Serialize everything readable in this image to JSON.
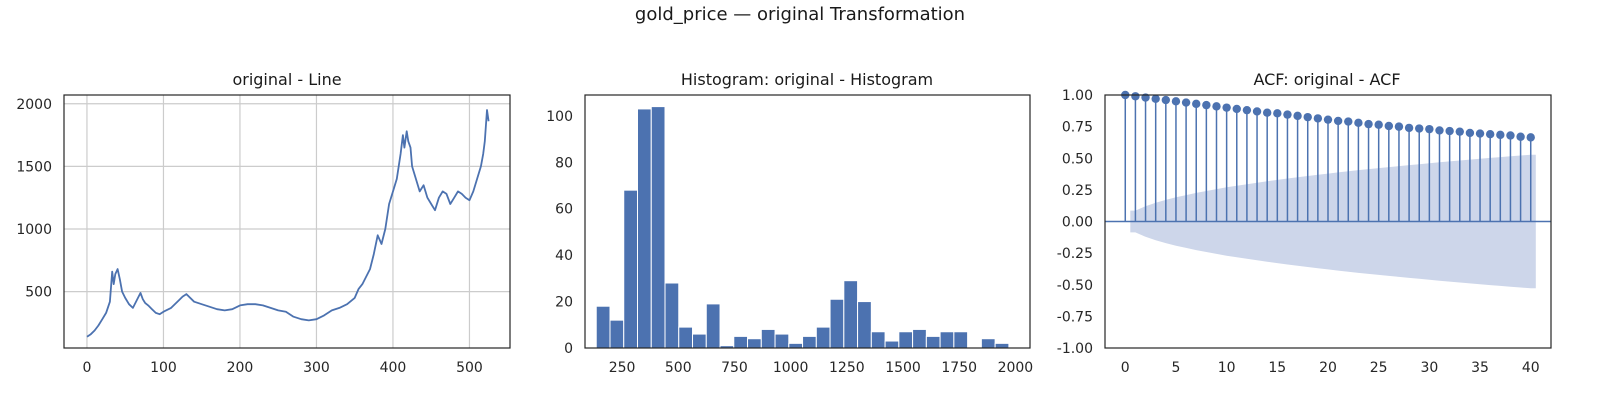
{
  "suptitle": "gold_price — original Transformation",
  "colors": {
    "series": "#4c72b0",
    "band": "#cdd6ea",
    "grid": "#cccccc",
    "frame": "#262626"
  },
  "chart_data": [
    {
      "type": "line",
      "title": "original - Line",
      "xlim": [
        -30,
        553
      ],
      "ylim": [
        50,
        2070
      ],
      "grid": true,
      "xticks": [
        0,
        100,
        200,
        300,
        400,
        500
      ],
      "yticks": [
        500,
        1000,
        1500,
        2000
      ],
      "x": [
        0,
        5,
        10,
        15,
        20,
        25,
        30,
        33,
        35,
        37,
        40,
        43,
        46,
        50,
        55,
        60,
        65,
        70,
        73,
        76,
        80,
        85,
        90,
        95,
        100,
        110,
        120,
        125,
        130,
        140,
        150,
        160,
        170,
        180,
        190,
        200,
        210,
        220,
        230,
        240,
        250,
        260,
        270,
        280,
        290,
        300,
        310,
        320,
        330,
        340,
        350,
        355,
        360,
        365,
        370,
        375,
        380,
        385,
        390,
        395,
        400,
        405,
        410,
        413,
        415,
        418,
        420,
        423,
        425,
        430,
        435,
        440,
        445,
        450,
        455,
        460,
        465,
        470,
        475,
        480,
        485,
        490,
        495,
        500,
        505,
        510,
        515,
        518,
        520,
        523,
        525
      ],
      "y": [
        140,
        160,
        190,
        230,
        280,
        330,
        420,
        660,
        560,
        640,
        680,
        600,
        500,
        450,
        400,
        370,
        430,
        490,
        440,
        410,
        390,
        360,
        330,
        320,
        340,
        370,
        430,
        460,
        480,
        420,
        400,
        380,
        360,
        350,
        360,
        390,
        400,
        400,
        390,
        370,
        350,
        340,
        300,
        280,
        270,
        280,
        310,
        350,
        370,
        400,
        450,
        520,
        560,
        620,
        680,
        800,
        950,
        880,
        1000,
        1200,
        1300,
        1400,
        1600,
        1750,
        1650,
        1780,
        1700,
        1650,
        1500,
        1400,
        1300,
        1350,
        1250,
        1200,
        1150,
        1250,
        1300,
        1280,
        1200,
        1250,
        1300,
        1280,
        1250,
        1230,
        1300,
        1400,
        1500,
        1600,
        1700,
        1950,
        1860
      ]
    },
    {
      "type": "bar",
      "title": "Histogram: original - Histogram",
      "xlim": [
        85,
        2065
      ],
      "ylim": [
        0,
        109
      ],
      "grid": false,
      "xticks": [
        250,
        500,
        750,
        1000,
        1250,
        1500,
        1750,
        2000
      ],
      "yticks": [
        0,
        20,
        40,
        60,
        80,
        100
      ],
      "bin_start": 135,
      "bin_width": 61.2,
      "counts": [
        18,
        12,
        68,
        103,
        104,
        28,
        9,
        6,
        19,
        1,
        5,
        4,
        8,
        6,
        2,
        5,
        9,
        21,
        29,
        20,
        7,
        3,
        7,
        8,
        5,
        7,
        7,
        0,
        4,
        2
      ]
    },
    {
      "type": "stem",
      "title": "ACF: original - ACF",
      "xlim": [
        -2,
        42
      ],
      "ylim": [
        -1.0,
        1.0
      ],
      "grid": false,
      "xticks": [
        0,
        5,
        10,
        15,
        20,
        25,
        30,
        35,
        40
      ],
      "yticks": [
        "1.00",
        "0.75",
        "0.50",
        "0.25",
        "0.00",
        "-0.25",
        "-0.50",
        "-0.75",
        "-1.00"
      ],
      "lags": [
        0,
        1,
        2,
        3,
        4,
        5,
        6,
        7,
        8,
        9,
        10,
        11,
        12,
        13,
        14,
        15,
        16,
        17,
        18,
        19,
        20,
        21,
        22,
        23,
        24,
        25,
        26,
        27,
        28,
        29,
        30,
        31,
        32,
        33,
        34,
        35,
        36,
        37,
        38,
        39,
        40
      ],
      "acf": [
        1.0,
        0.99,
        0.98,
        0.97,
        0.96,
        0.95,
        0.94,
        0.93,
        0.92,
        0.91,
        0.9,
        0.89,
        0.88,
        0.87,
        0.86,
        0.855,
        0.845,
        0.835,
        0.825,
        0.815,
        0.805,
        0.795,
        0.79,
        0.78,
        0.77,
        0.765,
        0.755,
        0.75,
        0.74,
        0.735,
        0.73,
        0.72,
        0.715,
        0.71,
        0.7,
        0.695,
        0.69,
        0.685,
        0.68,
        0.67,
        0.665
      ],
      "confint_upper": [
        0.0,
        0.086,
        0.121,
        0.148,
        0.171,
        0.191,
        0.209,
        0.226,
        0.241,
        0.256,
        0.27,
        0.283,
        0.295,
        0.307,
        0.318,
        0.329,
        0.34,
        0.35,
        0.36,
        0.37,
        0.379,
        0.388,
        0.397,
        0.406,
        0.414,
        0.422,
        0.43,
        0.438,
        0.446,
        0.453,
        0.461,
        0.468,
        0.475,
        0.482,
        0.489,
        0.496,
        0.503,
        0.509,
        0.516,
        0.522,
        0.528
      ]
    }
  ]
}
